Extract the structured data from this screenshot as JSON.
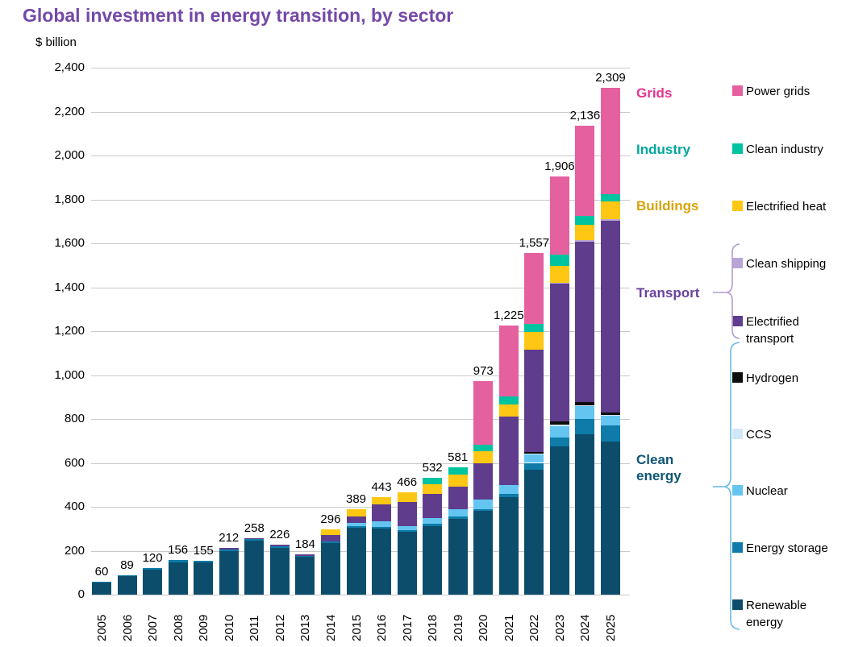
{
  "title": "Global investment in energy transition, by sector",
  "axis": {
    "unit_label": "$ billion",
    "y_tick_labels": [
      "0",
      "200",
      "400",
      "600",
      "800",
      "1,000",
      "1,200",
      "1,400",
      "1,600",
      "1,800",
      "2,000",
      "2,200",
      "2,400"
    ],
    "y_max": 2400,
    "y_step": 200
  },
  "chart_data": {
    "type": "bar",
    "stacked": true,
    "title": "Global investment in energy transition, by sector",
    "ylabel": "$ billion",
    "ylim": [
      0,
      2400
    ],
    "grid": "horizontal",
    "legend_position": "right",
    "categories": [
      "2005",
      "2006",
      "2007",
      "2008",
      "2009",
      "2010",
      "2011",
      "2012",
      "2013",
      "2014",
      "2015",
      "2016",
      "2017",
      "2018",
      "2019",
      "2020",
      "2021",
      "2022",
      "2023",
      "2024",
      "2025"
    ],
    "series": [
      {
        "name": "Renewable energy",
        "color": "#0c4d6c",
        "values": [
          55,
          83,
          113,
          148,
          148,
          199,
          247,
          214,
          172,
          235,
          305,
          300,
          285,
          312,
          345,
          380,
          443,
          570,
          675,
          730,
          697
        ]
      },
      {
        "name": "Energy storage",
        "color": "#0e7ba8",
        "values": [
          5,
          6,
          7,
          8,
          7,
          8,
          6,
          6,
          5,
          7,
          8,
          10,
          8,
          10,
          10,
          9,
          15,
          30,
          40,
          70,
          73
        ]
      },
      {
        "name": "Nuclear",
        "color": "#64c6f0",
        "values": [
          0,
          0,
          0,
          0,
          0,
          0,
          0,
          0,
          0,
          0,
          15,
          24,
          20,
          26,
          33,
          44,
          41,
          40,
          52,
          59,
          44
        ]
      },
      {
        "name": "CCS",
        "color": "#cfe7f7",
        "values": [
          0,
          0,
          0,
          0,
          0,
          0,
          0,
          0,
          0,
          0,
          0,
          0,
          0,
          0,
          0,
          0,
          0,
          4,
          6,
          4,
          4
        ]
      },
      {
        "name": "Hydrogen",
        "color": "#0d0d0d",
        "values": [
          0,
          0,
          0,
          0,
          0,
          0,
          0,
          0,
          0,
          0,
          0,
          0,
          0,
          0,
          0,
          0,
          0,
          7,
          16,
          14,
          13
        ]
      },
      {
        "name": "Electrified transport",
        "color": "#5f3d8c",
        "values": [
          0,
          0,
          0,
          0,
          0,
          5,
          5,
          6,
          7,
          28,
          29,
          77,
          110,
          110,
          103,
          165,
          312,
          466,
          627,
          732,
          873
        ]
      },
      {
        "name": "Clean shipping",
        "color": "#b9a6d6",
        "values": [
          0,
          0,
          0,
          0,
          0,
          0,
          0,
          0,
          0,
          0,
          0,
          0,
          0,
          0,
          0,
          0,
          0,
          0,
          3,
          5,
          6
        ]
      },
      {
        "name": "Electrified heat",
        "color": "#fdc713",
        "values": [
          0,
          0,
          0,
          0,
          0,
          0,
          0,
          0,
          0,
          26,
          32,
          32,
          43,
          44,
          55,
          55,
          55,
          81,
          80,
          70,
          80
        ]
      },
      {
        "name": "Clean industry",
        "color": "#00c3a0",
        "values": [
          0,
          0,
          0,
          0,
          0,
          0,
          0,
          0,
          0,
          0,
          0,
          0,
          0,
          30,
          35,
          29,
          36,
          36,
          48,
          40,
          33
        ]
      },
      {
        "name": "Power grids",
        "color": "#e5609f",
        "values": [
          0,
          0,
          0,
          0,
          0,
          0,
          0,
          0,
          0,
          0,
          0,
          0,
          0,
          0,
          0,
          291,
          323,
          323,
          359,
          412,
          486
        ]
      }
    ],
    "totals": [
      60,
      89,
      120,
      156,
      155,
      212,
      258,
      226,
      184,
      296,
      389,
      443,
      466,
      532,
      581,
      973,
      1225,
      1557,
      1906,
      2136,
      2309
    ],
    "totals_formatted": [
      "60",
      "89",
      "120",
      "156",
      "155",
      "212",
      "258",
      "226",
      "184",
      "296",
      "389",
      "443",
      "466",
      "532",
      "581",
      "973",
      "1,225",
      "1,557",
      "1,906",
      "2,136",
      "2,309"
    ]
  },
  "category_labels": [
    {
      "label": "Grids",
      "color": "#e5348f"
    },
    {
      "label": "Industry",
      "color": "#00a79b"
    },
    {
      "label": "Buildings",
      "color": "#d9a40d"
    },
    {
      "label": "Transport",
      "color": "#6a429e"
    },
    {
      "label": "Clean\nenergy",
      "color": "#0f5575"
    }
  ],
  "legend": [
    {
      "label": "Power grids",
      "color": "#e5609f"
    },
    {
      "label": "Clean industry",
      "color": "#00c3a0"
    },
    {
      "label": "Electrified heat",
      "color": "#fdc713"
    },
    {
      "label": "Clean shipping",
      "color": "#b9a6d6",
      "pattern": "dots"
    },
    {
      "label": "Electrified transport",
      "color": "#5f3d8c"
    },
    {
      "label": "Hydrogen",
      "color": "#0d0d0d"
    },
    {
      "label": "CCS",
      "color": "#cfe7f7"
    },
    {
      "label": "Nuclear",
      "color": "#64c6f0"
    },
    {
      "label": "Energy storage",
      "color": "#0e7ba8"
    },
    {
      "label": "Renewable energy",
      "color": "#0c4d6c"
    }
  ],
  "brackets": {
    "transport_color": "#b49bd1",
    "clean_energy_color": "#6cb9e6"
  }
}
